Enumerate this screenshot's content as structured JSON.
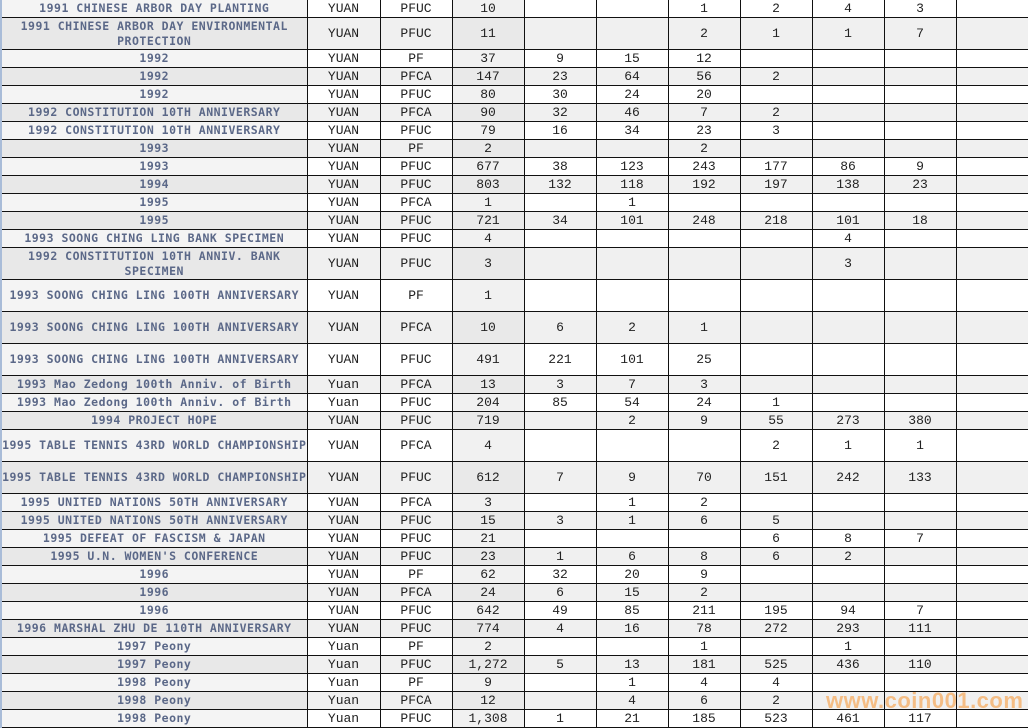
{
  "rows": [
    [
      "1991 CHINESE ARBOR DAY PLANTING",
      "YUAN",
      "PFUC",
      "10",
      "",
      "",
      "1",
      "2",
      "4",
      "3",
      ""
    ],
    [
      "1991 CHINESE ARBOR DAY ENVIRONMENTAL PROTECTION",
      "YUAN",
      "PFUC",
      "11",
      "",
      "",
      "2",
      "1",
      "1",
      "7",
      ""
    ],
    [
      "1992",
      "YUAN",
      "PF",
      "37",
      "9",
      "15",
      "12",
      "",
      "",
      "",
      ""
    ],
    [
      "1992",
      "YUAN",
      "PFCA",
      "147",
      "23",
      "64",
      "56",
      "2",
      "",
      "",
      ""
    ],
    [
      "1992",
      "YUAN",
      "PFUC",
      "80",
      "30",
      "24",
      "20",
      "",
      "",
      "",
      ""
    ],
    [
      "1992 CONSTITUTION 10TH ANNIVERSARY",
      "YUAN",
      "PFCA",
      "90",
      "32",
      "46",
      "7",
      "2",
      "",
      "",
      ""
    ],
    [
      "1992 CONSTITUTION 10TH ANNIVERSARY",
      "YUAN",
      "PFUC",
      "79",
      "16",
      "34",
      "23",
      "3",
      "",
      "",
      ""
    ],
    [
      "1993",
      "YUAN",
      "PF",
      "2",
      "",
      "",
      "2",
      "",
      "",
      "",
      ""
    ],
    [
      "1993",
      "YUAN",
      "PFUC",
      "677",
      "38",
      "123",
      "243",
      "177",
      "86",
      "9",
      ""
    ],
    [
      "1994",
      "YUAN",
      "PFUC",
      "803",
      "132",
      "118",
      "192",
      "197",
      "138",
      "23",
      ""
    ],
    [
      "1995",
      "YUAN",
      "PFCA",
      "1",
      "",
      "1",
      "",
      "",
      "",
      "",
      ""
    ],
    [
      "1995",
      "YUAN",
      "PFUC",
      "721",
      "34",
      "101",
      "248",
      "218",
      "101",
      "18",
      ""
    ],
    [
      "1993 SOONG CHING LING BANK SPECIMEN",
      "YUAN",
      "PFUC",
      "4",
      "",
      "",
      "",
      "",
      "4",
      "",
      ""
    ],
    [
      "1992 CONSTITUTION 10TH ANNIV. BANK SPECIMEN",
      "YUAN",
      "PFUC",
      "3",
      "",
      "",
      "",
      "",
      "3",
      "",
      ""
    ],
    [
      "1993 SOONG CHING LING 100TH ANNIVERSARY",
      "YUAN",
      "PF",
      "1",
      "",
      "",
      "",
      "",
      "",
      "",
      ""
    ],
    [
      "1993 SOONG CHING LING 100TH ANNIVERSARY",
      "YUAN",
      "PFCA",
      "10",
      "6",
      "2",
      "1",
      "",
      "",
      "",
      ""
    ],
    [
      "1993 SOONG CHING LING 100TH ANNIVERSARY",
      "YUAN",
      "PFUC",
      "491",
      "221",
      "101",
      "25",
      "",
      "",
      "",
      ""
    ],
    [
      "1993 Mao Zedong 100th Anniv. of Birth",
      "Yuan",
      "PFCA",
      "13",
      "3",
      "7",
      "3",
      "",
      "",
      "",
      ""
    ],
    [
      "1993 Mao Zedong 100th Anniv. of Birth",
      "Yuan",
      "PFUC",
      "204",
      "85",
      "54",
      "24",
      "1",
      "",
      "",
      ""
    ],
    [
      "1994 PROJECT HOPE",
      "YUAN",
      "PFUC",
      "719",
      "",
      "2",
      "9",
      "55",
      "273",
      "380",
      ""
    ],
    [
      "1995 TABLE TENNIS 43RD WORLD CHAMPIONSHIP",
      "YUAN",
      "PFCA",
      "4",
      "",
      "",
      "",
      "2",
      "1",
      "1",
      ""
    ],
    [
      "1995 TABLE TENNIS 43RD WORLD CHAMPIONSHIP",
      "YUAN",
      "PFUC",
      "612",
      "7",
      "9",
      "70",
      "151",
      "242",
      "133",
      ""
    ],
    [
      "1995 UNITED NATIONS 50TH ANNIVERSARY",
      "YUAN",
      "PFCA",
      "3",
      "",
      "1",
      "2",
      "",
      "",
      "",
      ""
    ],
    [
      "1995 UNITED NATIONS 50TH ANNIVERSARY",
      "YUAN",
      "PFUC",
      "15",
      "3",
      "1",
      "6",
      "5",
      "",
      "",
      ""
    ],
    [
      "1995 DEFEAT OF FASCISM & JAPAN",
      "YUAN",
      "PFUC",
      "21",
      "",
      "",
      "",
      "6",
      "8",
      "7",
      ""
    ],
    [
      "1995 U.N. WOMEN'S CONFERENCE",
      "YUAN",
      "PFUC",
      "23",
      "1",
      "6",
      "8",
      "6",
      "2",
      "",
      ""
    ],
    [
      "1996",
      "YUAN",
      "PF",
      "62",
      "32",
      "20",
      "9",
      "",
      "",
      "",
      ""
    ],
    [
      "1996",
      "YUAN",
      "PFCA",
      "24",
      "6",
      "15",
      "2",
      "",
      "",
      "",
      ""
    ],
    [
      "1996",
      "YUAN",
      "PFUC",
      "642",
      "49",
      "85",
      "211",
      "195",
      "94",
      "7",
      ""
    ],
    [
      "1996 MARSHAL ZHU DE 110TH ANNIVERSARY",
      "YUAN",
      "PFUC",
      "774",
      "4",
      "16",
      "78",
      "272",
      "293",
      "111",
      ""
    ],
    [
      "1997 Peony",
      "Yuan",
      "PF",
      "2",
      "",
      "",
      "1",
      "",
      "1",
      "",
      ""
    ],
    [
      "1997 Peony",
      "Yuan",
      "PFUC",
      "1,272",
      "5",
      "13",
      "181",
      "525",
      "436",
      "110",
      ""
    ],
    [
      "1998 Peony",
      "Yuan",
      "PF",
      "9",
      "",
      "1",
      "4",
      "4",
      "",
      "",
      ""
    ],
    [
      "1998 Peony",
      "Yuan",
      "PFCA",
      "12",
      "",
      "4",
      "6",
      "2",
      "",
      "",
      ""
    ],
    [
      "1998 Peony",
      "Yuan",
      "PFUC",
      "1,308",
      "1",
      "21",
      "185",
      "523",
      "461",
      "117",
      ""
    ]
  ],
  "double_height_rows": [
    1,
    13,
    14,
    15,
    16,
    20,
    21
  ],
  "watermark": "www.coin001.com",
  "colors": {
    "name_text": "#5b6888",
    "watermark": "#f5b87a",
    "row_alt": "#f0f0f0"
  }
}
